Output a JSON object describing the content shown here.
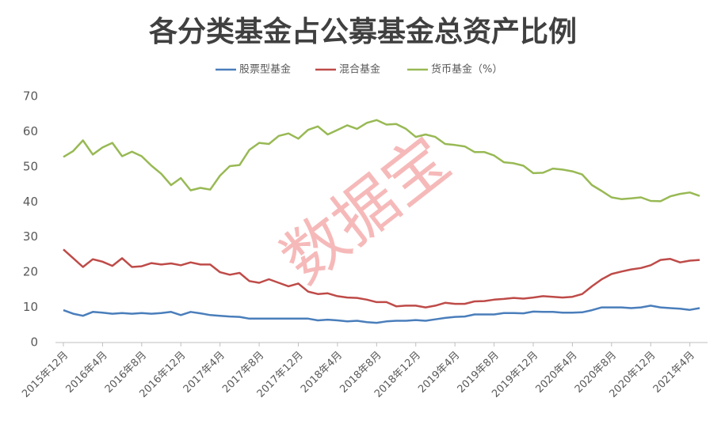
{
  "chart_data": {
    "type": "line",
    "title": "各分类基金占公募基金总资产比例",
    "watermark": "数据宝",
    "categories": [
      "2015年12月",
      null,
      null,
      null,
      "2016年4月",
      null,
      null,
      null,
      "2016年8月",
      null,
      null,
      null,
      "2016年12月",
      null,
      null,
      null,
      "2017年4月",
      null,
      null,
      null,
      "2017年8月",
      null,
      null,
      null,
      "2017年12月",
      null,
      null,
      null,
      "2018年4月",
      null,
      null,
      null,
      "2018年8月",
      null,
      null,
      null,
      "2018年12月",
      null,
      null,
      null,
      "2019年4月",
      null,
      null,
      null,
      "2019年8月",
      null,
      null,
      null,
      "2019年12月",
      null,
      null,
      null,
      "2020年4月",
      null,
      null,
      null,
      "2020年8月",
      null,
      null,
      null,
      "2020年12月",
      null,
      null,
      null,
      "2021年4月",
      null
    ],
    "series": [
      {
        "name": "股票型基金",
        "color": "#4a7ebb",
        "values": [
          9.2,
          8.2,
          7.6,
          8.7,
          8.5,
          8.2,
          8.4,
          8.2,
          8.4,
          8.2,
          8.4,
          8.7,
          7.8,
          8.7,
          8.3,
          7.8,
          7.6,
          7.4,
          7.3,
          6.8,
          6.8,
          6.8,
          6.8,
          6.8,
          6.8,
          6.8,
          6.3,
          6.5,
          6.3,
          6.0,
          6.2,
          5.8,
          5.6,
          6.0,
          6.2,
          6.2,
          6.4,
          6.2,
          6.6,
          7.0,
          7.3,
          7.4,
          8.0,
          8.0,
          8.0,
          8.4,
          8.4,
          8.3,
          8.8,
          8.7,
          8.7,
          8.5,
          8.5,
          8.6,
          9.2,
          10.0,
          10.0,
          10.0,
          9.8,
          10.0,
          10.5,
          10.0,
          9.8,
          9.6,
          9.3,
          9.8
        ]
      },
      {
        "name": "混合基金",
        "color": "#be4b48",
        "values": [
          26.5,
          24,
          21.5,
          23.7,
          23,
          21.8,
          24,
          21.5,
          21.7,
          22.6,
          22.2,
          22.5,
          22,
          22.8,
          22.2,
          22.2,
          20,
          19.3,
          19.8,
          17.5,
          17,
          18,
          17,
          16,
          16.8,
          14.5,
          13.8,
          14,
          13.2,
          12.8,
          12.7,
          12.2,
          11.5,
          11.5,
          10.3,
          10.5,
          10.5,
          10,
          10.5,
          11.3,
          11,
          11,
          11.7,
          11.8,
          12.2,
          12.4,
          12.7,
          12.5,
          12.8,
          13.2,
          13,
          12.8,
          13,
          13.8,
          16,
          18,
          19.5,
          20.2,
          20.8,
          21.2,
          22,
          23.5,
          23.8,
          22.8,
          23.3,
          23.5
        ]
      },
      {
        "name": "货币基金（%）",
        "color": "#98b954",
        "values": [
          52.8,
          54.5,
          57.5,
          53.5,
          55.5,
          56.8,
          53,
          54.3,
          53,
          50.3,
          48,
          44.8,
          46.8,
          43.3,
          44,
          43.5,
          47.5,
          50.2,
          50.5,
          54.8,
          56.8,
          56.5,
          58.8,
          59.5,
          58,
          60.5,
          61.5,
          59.2,
          60.5,
          61.8,
          60.8,
          62.5,
          63.3,
          62,
          62.2,
          60.8,
          58.5,
          59.2,
          58.5,
          56.5,
          56.2,
          55.8,
          54.2,
          54.2,
          53.2,
          51.3,
          51,
          50.3,
          48.2,
          48.3,
          49.5,
          49.2,
          48.7,
          47.8,
          44.8,
          43.1,
          41.3,
          40.8,
          41,
          41.3,
          40.3,
          40.2,
          41.6,
          42.3,
          42.7,
          41.7
        ]
      }
    ],
    "ylim": [
      0,
      70
    ],
    "yticks": [
      0,
      10,
      20,
      30,
      40,
      50,
      60,
      70
    ],
    "grid": false,
    "legend": "top"
  }
}
